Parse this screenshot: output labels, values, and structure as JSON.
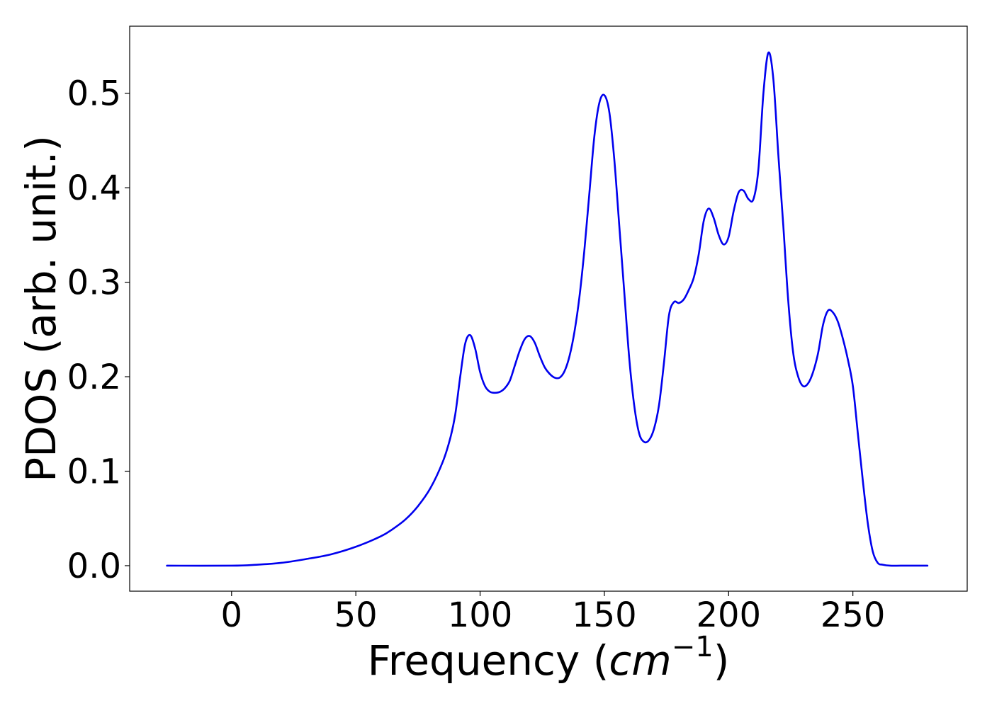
{
  "chart_data": {
    "type": "line",
    "title": "",
    "xlabel_text": "Frequency (",
    "xlabel_unit": "cm",
    "xlabel_exp": "−1",
    "xlabel_close": ")",
    "ylabel": "PDOS (arb. unit.)",
    "xlim": [
      -41,
      296
    ],
    "ylim": [
      -0.027,
      0.571
    ],
    "xticks": [
      0,
      50,
      100,
      150,
      200,
      250
    ],
    "xtick_labels": [
      "0",
      "50",
      "100",
      "150",
      "200",
      "250"
    ],
    "yticks": [
      0.0,
      0.1,
      0.2,
      0.3,
      0.4,
      0.5
    ],
    "ytick_labels": [
      "0.0",
      "0.1",
      "0.2",
      "0.3",
      "0.4",
      "0.5"
    ],
    "grid": false,
    "line_color": "#0000ee",
    "series": [
      {
        "x": [
          -26,
          0,
          10,
          20,
          30,
          40,
          50,
          60,
          65,
          70,
          75,
          80,
          85,
          88,
          90,
          92,
          94,
          96,
          98,
          100,
          102,
          104,
          106,
          108,
          110,
          112,
          114,
          116,
          118,
          120,
          122,
          124,
          126,
          128,
          130,
          132,
          134,
          136,
          138,
          140,
          142,
          144,
          146,
          148,
          150,
          152,
          154,
          156,
          158,
          160,
          162,
          164,
          166,
          168,
          170,
          172,
          174,
          176,
          178,
          180,
          182,
          184,
          186,
          188,
          190,
          192,
          194,
          196,
          198,
          200,
          202,
          204,
          206,
          208,
          210,
          212,
          214,
          216,
          218,
          220,
          222,
          224,
          226,
          228,
          230,
          232,
          234,
          236,
          238,
          240,
          242,
          244,
          246,
          248,
          250,
          252,
          254,
          256,
          258,
          260,
          262,
          265,
          270,
          280
        ],
        "y": [
          0.0,
          0.0,
          0.001,
          0.003,
          0.007,
          0.012,
          0.02,
          0.031,
          0.039,
          0.049,
          0.063,
          0.082,
          0.11,
          0.135,
          0.16,
          0.2,
          0.235,
          0.244,
          0.23,
          0.205,
          0.19,
          0.184,
          0.183,
          0.184,
          0.188,
          0.196,
          0.212,
          0.228,
          0.24,
          0.243,
          0.236,
          0.222,
          0.21,
          0.203,
          0.199,
          0.199,
          0.206,
          0.222,
          0.248,
          0.285,
          0.335,
          0.395,
          0.455,
          0.49,
          0.498,
          0.48,
          0.43,
          0.36,
          0.29,
          0.22,
          0.17,
          0.14,
          0.131,
          0.133,
          0.145,
          0.17,
          0.215,
          0.265,
          0.279,
          0.278,
          0.282,
          0.292,
          0.305,
          0.33,
          0.365,
          0.378,
          0.368,
          0.35,
          0.34,
          0.348,
          0.375,
          0.395,
          0.397,
          0.388,
          0.388,
          0.42,
          0.5,
          0.543,
          0.515,
          0.435,
          0.36,
          0.28,
          0.225,
          0.2,
          0.19,
          0.193,
          0.205,
          0.225,
          0.255,
          0.27,
          0.268,
          0.258,
          0.24,
          0.218,
          0.19,
          0.14,
          0.09,
          0.045,
          0.015,
          0.003,
          0.001,
          0.0,
          0.0,
          0.0
        ]
      }
    ]
  }
}
